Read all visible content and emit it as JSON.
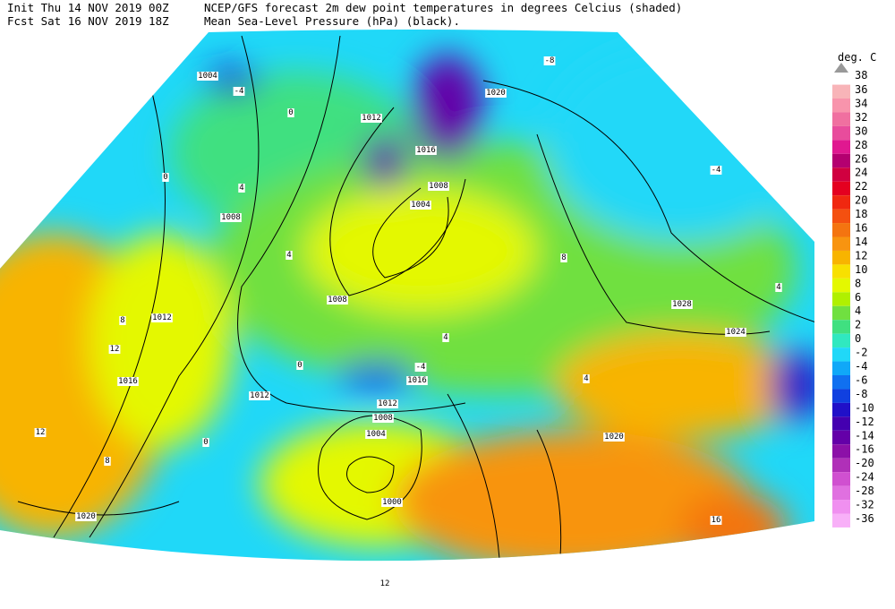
{
  "header": {
    "init": "Init  Thu 14 NOV 2019 00Z",
    "fcst": "Fcst Sat 16 NOV 2019 18Z",
    "line1": "NCEP/GFS forecast 2m dew point temperatures in degrees Celcius (shaded)",
    "line2": "Mean Sea-Level Pressure (hPa) (black)."
  },
  "legend": {
    "unit": "deg. C",
    "top": "38",
    "entries": [
      {
        "label": "36",
        "color": "#f8b4b8"
      },
      {
        "label": "34",
        "color": "#f894ac"
      },
      {
        "label": "32",
        "color": "#f070a0"
      },
      {
        "label": "30",
        "color": "#e84c9c"
      },
      {
        "label": "28",
        "color": "#e01890"
      },
      {
        "label": "26",
        "color": "#b40070"
      },
      {
        "label": "24",
        "color": "#d00040"
      },
      {
        "label": "22",
        "color": "#e40020"
      },
      {
        "label": "20",
        "color": "#f02810"
      },
      {
        "label": "18",
        "color": "#f45010"
      },
      {
        "label": "16",
        "color": "#f47410"
      },
      {
        "label": "14",
        "color": "#f89410"
      },
      {
        "label": "12",
        "color": "#f8b400"
      },
      {
        "label": "10",
        "color": "#f8e000"
      },
      {
        "label": "8",
        "color": "#e4f800"
      },
      {
        "label": "6",
        "color": "#b0f000"
      },
      {
        "label": "4",
        "color": "#70e040"
      },
      {
        "label": "2",
        "color": "#40e080"
      },
      {
        "label": "0",
        "color": "#30e8c0"
      },
      {
        "label": "-2",
        "color": "#20d8f8"
      },
      {
        "label": "-4",
        "color": "#10a8f8"
      },
      {
        "label": "-6",
        "color": "#1070f0"
      },
      {
        "label": "-8",
        "color": "#1040e0"
      },
      {
        "label": "-10",
        "color": "#2010c8"
      },
      {
        "label": "-12",
        "color": "#4400b0"
      },
      {
        "label": "-14",
        "color": "#6400a8"
      },
      {
        "label": "-16",
        "color": "#8c10a8"
      },
      {
        "label": "-20",
        "color": "#b030b8"
      },
      {
        "label": "-24",
        "color": "#d050d0"
      },
      {
        "label": "-28",
        "color": "#e070e0"
      },
      {
        "label": "-32",
        "color": "#f090f0"
      },
      {
        "label": "-36",
        "color": "#f8b0f8"
      }
    ]
  },
  "map": {
    "isobar_labels": [
      "1004",
      "1012",
      "1020",
      "1016",
      "1008",
      "1004",
      "1008",
      "1012",
      "1008",
      "1016",
      "1012",
      "1008",
      "1004",
      "1000",
      "1028",
      "1024",
      "1020",
      "1020",
      "1016",
      "1012"
    ],
    "dewpoint_labels": [
      "0",
      "4",
      "0",
      "-4",
      "8",
      "12",
      "4",
      "8",
      "12",
      "0",
      "4",
      "-4",
      "0",
      "8",
      "4",
      "-4",
      "16",
      "12",
      "-8",
      "4"
    ]
  }
}
